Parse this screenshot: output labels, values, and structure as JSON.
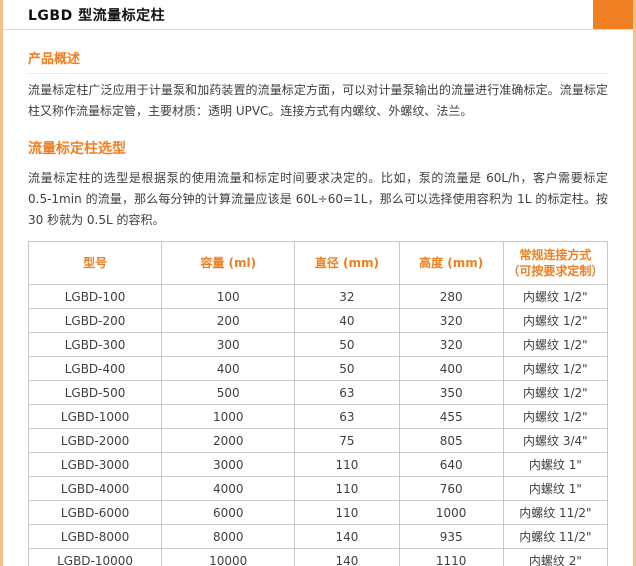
{
  "header": {
    "title": "LGBD 型流量标定柱"
  },
  "overview": {
    "heading": "产品概述",
    "body": "流量标定柱广泛应用于计量泵和加药装置的流量标定方面，可以对计量泵输出的流量进行准确标定。流量标定柱又称作流量标定管，主要材质：透明 UPVC。连接方式有内螺纹、外螺纹、法兰。"
  },
  "selection": {
    "heading": "流量标定柱选型",
    "body": "流量标定柱的选型是根据泵的使用流量和标定时间要求决定的。比如，泵的流量是 60L/h，客户需要标定 0.5-1min 的流量，那么每分钟的计算流量应该是 60L÷60=1L，那么可以选择使用容积为 1L 的标定柱。按 30 秒就为 0.5L 的容积。"
  },
  "table": {
    "headers": [
      "型号",
      "容量 (ml)",
      "直径 (mm)",
      "高度 (mm)",
      "常规连接方式\n（可按要求定制）"
    ],
    "rows": [
      [
        "LGBD-100",
        "100",
        "32",
        "280",
        "内螺纹 1/2\""
      ],
      [
        "LGBD-200",
        "200",
        "40",
        "320",
        "内螺纹 1/2\""
      ],
      [
        "LGBD-300",
        "300",
        "50",
        "320",
        "内螺纹 1/2\""
      ],
      [
        "LGBD-400",
        "400",
        "50",
        "400",
        "内螺纹 1/2\""
      ],
      [
        "LGBD-500",
        "500",
        "63",
        "350",
        "内螺纹 1/2\""
      ],
      [
        "LGBD-1000",
        "1000",
        "63",
        "455",
        "内螺纹 1/2\""
      ],
      [
        "LGBD-2000",
        "2000",
        "75",
        "805",
        "内螺纹 3/4\""
      ],
      [
        "LGBD-3000",
        "3000",
        "110",
        "640",
        "内螺纹 1\""
      ],
      [
        "LGBD-4000",
        "4000",
        "110",
        "760",
        "内螺纹 1\""
      ],
      [
        "LGBD-6000",
        "6000",
        "110",
        "1000",
        "内螺纹 11/2\""
      ],
      [
        "LGBD-8000",
        "8000",
        "140",
        "935",
        "内螺纹 11/2\""
      ],
      [
        "LGBD-10000",
        "10000",
        "140",
        "1110",
        "内螺纹 2\""
      ]
    ]
  },
  "colors": {
    "accent_orange": "#ee7f22",
    "side_border_orange": "#f5c08a",
    "table_border_gray": "#c9c9c9",
    "text_dark": "#3f3f3f"
  }
}
